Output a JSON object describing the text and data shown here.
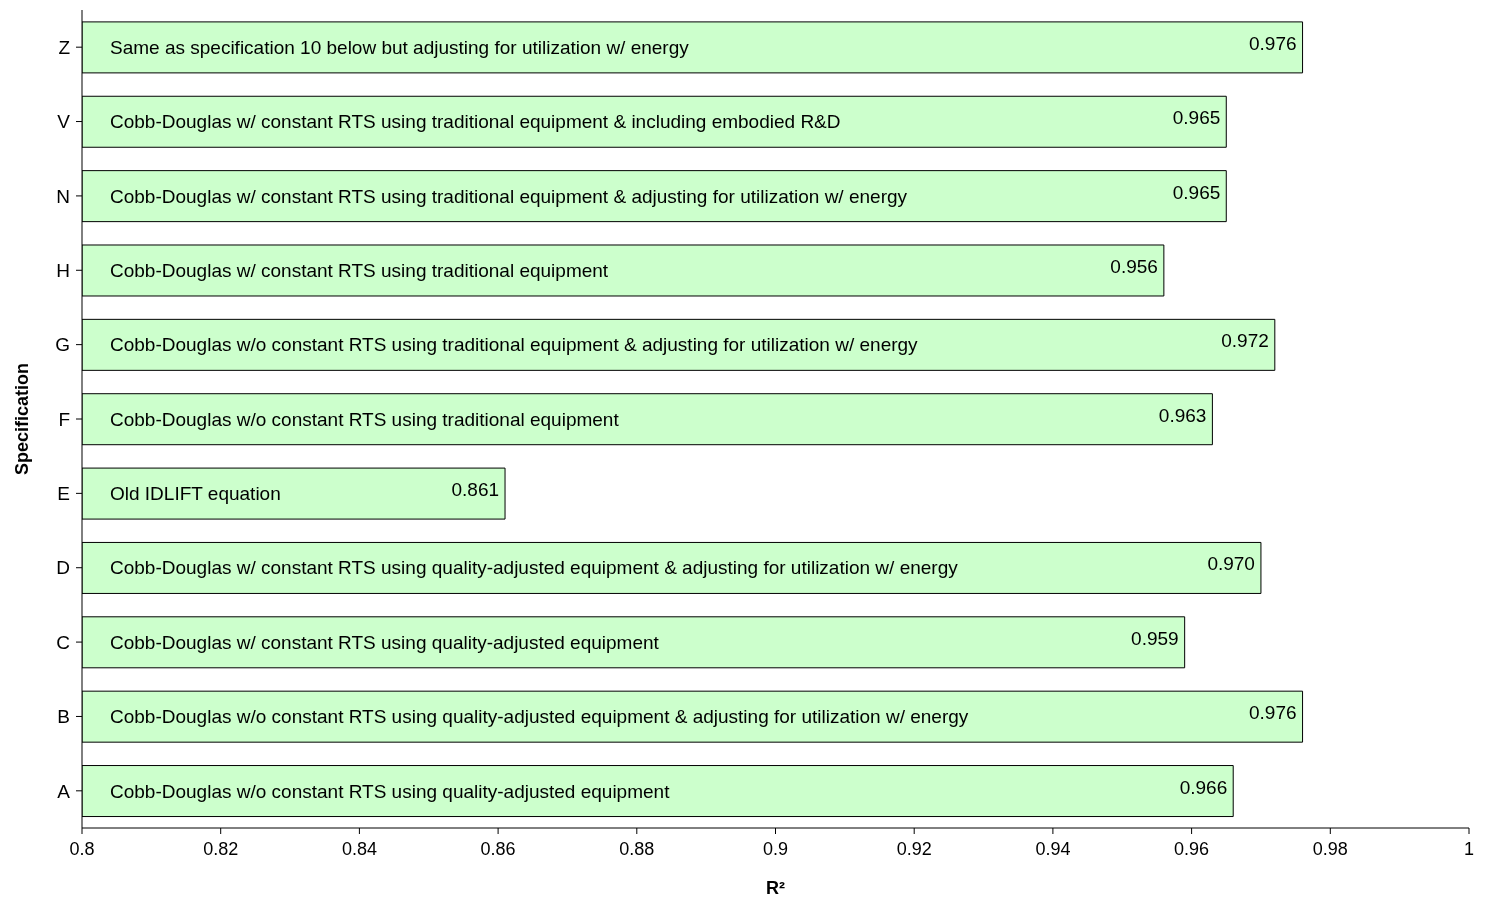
{
  "chart_data": {
    "type": "bar",
    "orientation": "horizontal",
    "xlabel": "R²",
    "ylabel": "Specification",
    "categories": [
      "Z",
      "V",
      "N",
      "H",
      "G",
      "F",
      "E",
      "D",
      "C",
      "B",
      "A"
    ],
    "values": [
      0.976,
      0.965,
      0.965,
      0.956,
      0.972,
      0.963,
      0.861,
      0.97,
      0.959,
      0.976,
      0.966
    ],
    "value_labels": [
      "0.976",
      "0.965",
      "0.965",
      "0.956",
      "0.972",
      "0.963",
      "0.861",
      "0.970",
      "0.959",
      "0.976",
      "0.966"
    ],
    "color": "#ccffcc",
    "xlim": [
      0.8,
      1
    ],
    "xticks": [
      0.8,
      0.82,
      0.84,
      0.86,
      0.88,
      0.9,
      0.92,
      0.94,
      0.96,
      0.98,
      1
    ],
    "annotations": [
      "Same as specification 10 below but adjusting for utilization w/ energy",
      "Cobb-Douglas w/ constant RTS using traditional equipment & including embodied R&D",
      "Cobb-Douglas w/ constant RTS using traditional equipment & adjusting for utilization w/ energy",
      "Cobb-Douglas w/ constant RTS using traditional equipment",
      "Cobb-Douglas w/o constant RTS using traditional equipment & adjusting for utilization w/ energy",
      "Cobb-Douglas w/o constant RTS using traditional equipment",
      "Old IDLIFT equation",
      "Cobb-Douglas w/ constant RTS using quality-adjusted equipment & adjusting for utilization w/ energy",
      "Cobb-Douglas w/ constant RTS using quality-adjusted equipment",
      "Cobb-Douglas w/o constant RTS using quality-adjusted equipment & adjusting for utilization w/ energy",
      "Cobb-Douglas w/o constant RTS using quality-adjusted equipment"
    ]
  }
}
